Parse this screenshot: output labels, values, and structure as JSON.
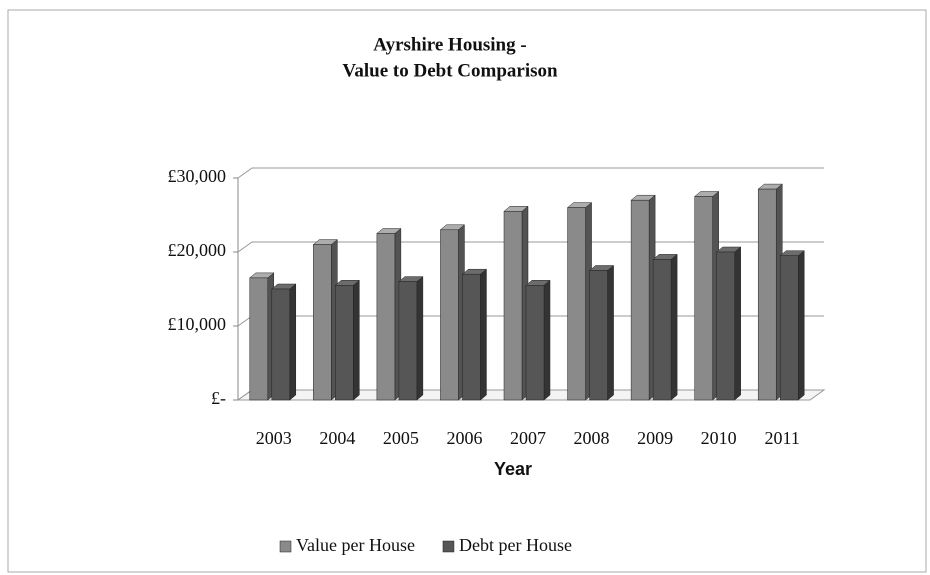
{
  "chart_data": {
    "type": "bar3d",
    "title": [
      "Ayrshire Housing -",
      "Value to Debt Comparison"
    ],
    "x_label": "Year",
    "categories": [
      "2003",
      "2004",
      "2005",
      "2006",
      "2007",
      "2008",
      "2009",
      "2010",
      "2011"
    ],
    "series": [
      {
        "name": "Value per House",
        "color": "#8a8a8a",
        "values": [
          16500,
          21000,
          22500,
          23000,
          25500,
          26000,
          27000,
          27500,
          28500
        ]
      },
      {
        "name": "Debt per House",
        "color": "#565656",
        "values": [
          15000,
          15500,
          16000,
          17000,
          15500,
          17500,
          19000,
          20000,
          19500
        ]
      }
    ],
    "ylim": [
      0,
      30000
    ],
    "yticks": [
      {
        "value": 0,
        "label": "£-"
      },
      {
        "value": 10000,
        "label": "£10,000"
      },
      {
        "value": 20000,
        "label": "£20,000"
      },
      {
        "value": 30000,
        "label": "£30,000"
      }
    ],
    "grid": true,
    "legend": "bottom"
  }
}
